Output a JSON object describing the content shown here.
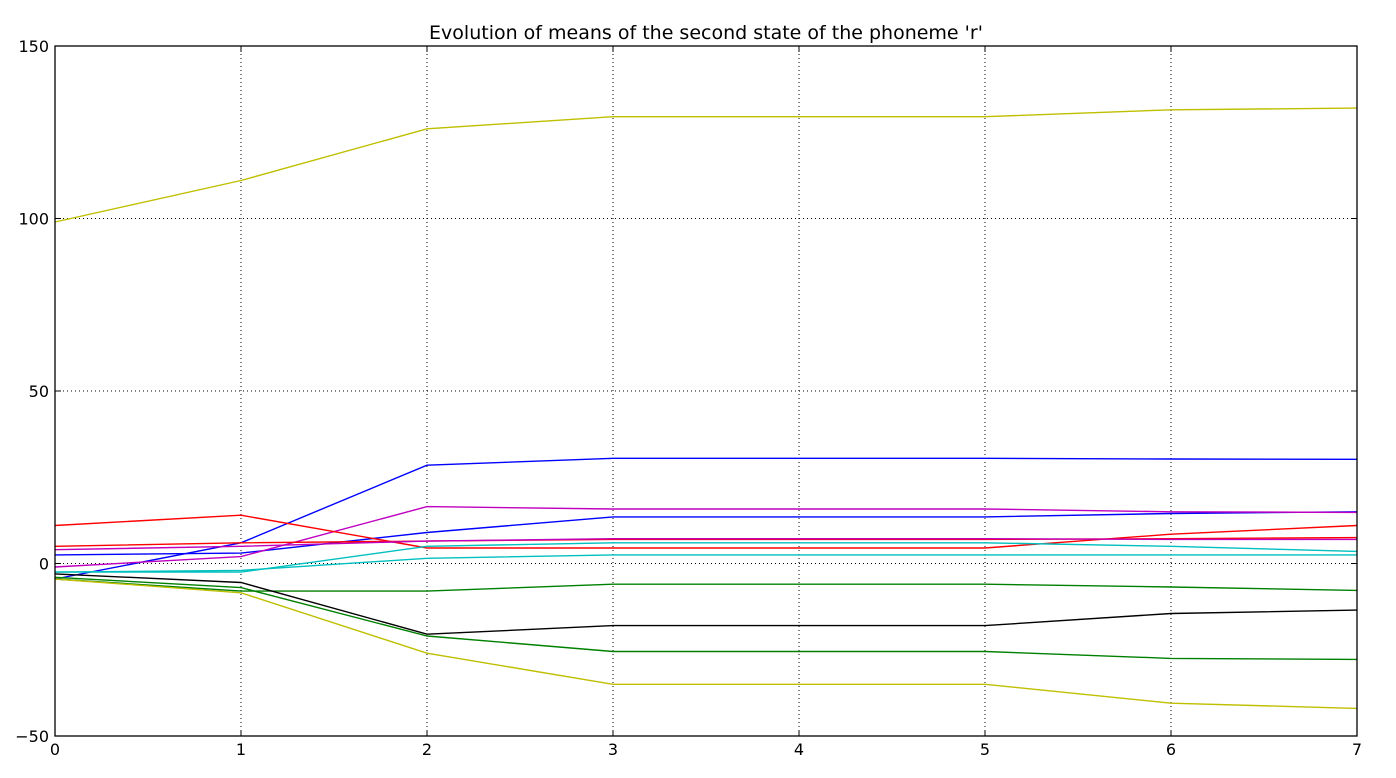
{
  "chart_data": {
    "type": "line",
    "title": "Evolution of means of the second state of the phoneme 'r'",
    "xlabel": "",
    "ylabel": "",
    "xlim": [
      0,
      7
    ],
    "ylim": [
      -50,
      150
    ],
    "xticks": [
      "0",
      "1",
      "2",
      "3",
      "4",
      "5",
      "6",
      "7"
    ],
    "yticks": [
      "−50",
      "0",
      "50",
      "100",
      "150"
    ],
    "grid": true,
    "legend": "none",
    "x": [
      0,
      1,
      2,
      3,
      4,
      5,
      6,
      7
    ],
    "series": [
      {
        "color": "#bfbf00",
        "values": [
          99,
          111,
          126,
          129.5,
          129.5,
          129.5,
          131.5,
          132
        ]
      },
      {
        "color": "#0000ff",
        "values": [
          -4.5,
          6,
          28.5,
          30.5,
          30.5,
          30.5,
          30.3,
          30.2
        ]
      },
      {
        "color": "#0000ff",
        "values": [
          2.5,
          3,
          9,
          13.5,
          13.5,
          13.5,
          14.5,
          15
        ]
      },
      {
        "color": "#bf00bf",
        "values": [
          -1,
          2,
          16.5,
          15.8,
          15.8,
          15.8,
          15,
          14.8
        ]
      },
      {
        "color": "#ff0000",
        "values": [
          11,
          14,
          4.5,
          4.5,
          4.5,
          4.5,
          8.5,
          11
        ]
      },
      {
        "color": "#ff0000",
        "values": [
          5,
          6,
          6.5,
          7,
          7,
          7,
          7.2,
          7.5
        ]
      },
      {
        "color": "#bf00bf",
        "values": [
          4,
          5,
          6.5,
          7.2,
          7.2,
          7.2,
          7,
          7
        ]
      },
      {
        "color": "#00bfbf",
        "values": [
          -2.5,
          -2.5,
          5,
          6,
          6,
          6,
          5,
          3.5
        ]
      },
      {
        "color": "#00bfbf",
        "values": [
          -2.5,
          -2,
          1.5,
          2.5,
          2.5,
          2.5,
          2.5,
          2.5
        ]
      },
      {
        "color": "#008000",
        "values": [
          -4.5,
          -8,
          -8,
          -6,
          -6,
          -6,
          -6.8,
          -7.8
        ]
      },
      {
        "color": "#000000",
        "values": [
          -3,
          -5.5,
          -20.5,
          -18,
          -18,
          -18,
          -14.5,
          -13.5
        ]
      },
      {
        "color": "#008000",
        "values": [
          -4,
          -7,
          -21,
          -25.5,
          -25.5,
          -25.5,
          -27.5,
          -27.8
        ]
      },
      {
        "color": "#bfbf00",
        "values": [
          -4.5,
          -8.5,
          -26,
          -35,
          -35,
          -35,
          -40.5,
          -42
        ]
      }
    ]
  }
}
